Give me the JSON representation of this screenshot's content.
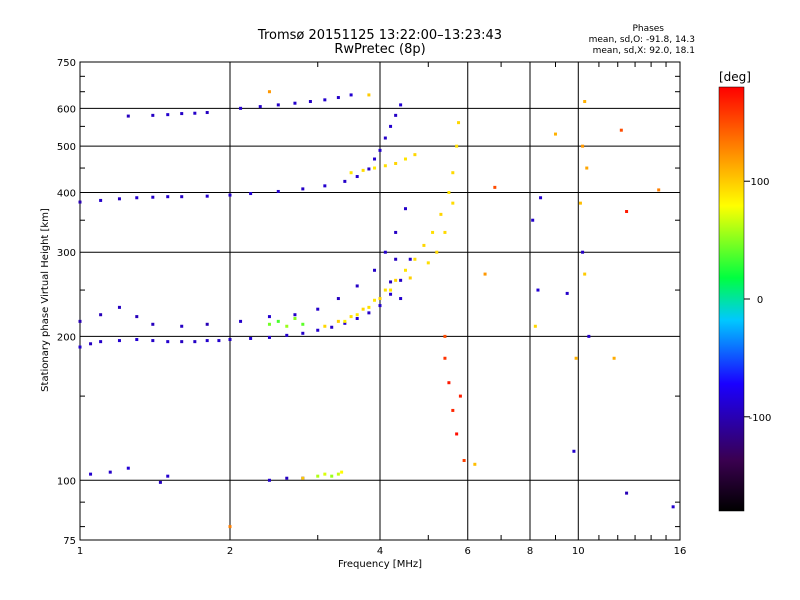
{
  "chart_data": {
    "type": "scatter",
    "title": "Tromsø 20151125 13:22:00–13:23:43",
    "subtitle": "RwPretec (8p)",
    "stats": {
      "heading": "Phases",
      "line_o": "mean, sd,O: -91.8, 14.3",
      "line_x": "mean, sd,X:  92.0, 18.1"
    },
    "xlabel": "Frequency [MHz]",
    "ylabel": "Stationary phase Virtual Height [km]",
    "xscale": "log",
    "yscale": "log",
    "xlim": [
      1,
      16
    ],
    "ylim": [
      75,
      750
    ],
    "x_ticks": [
      1,
      2,
      4,
      6,
      8,
      10,
      16
    ],
    "y_ticks": [
      75,
      100,
      200,
      300,
      400,
      500,
      600,
      750
    ],
    "grid": true,
    "colorbar": {
      "label": "[deg]",
      "range": [
        -180,
        180
      ],
      "ticks": [
        100,
        0,
        -100
      ],
      "colormap": "rainbow"
    },
    "series": [
      {
        "points": [
          [
            1.0,
            190,
            -90
          ],
          [
            1.05,
            193,
            -95
          ],
          [
            1.1,
            195,
            -92
          ],
          [
            1.2,
            196,
            -90
          ],
          [
            1.3,
            197,
            -88
          ],
          [
            1.4,
            196,
            -92
          ],
          [
            1.5,
            195,
            -90
          ],
          [
            1.6,
            195,
            -95
          ],
          [
            1.7,
            195,
            -93
          ],
          [
            1.8,
            196,
            -91
          ],
          [
            1.9,
            196,
            -90
          ],
          [
            2.0,
            197,
            -92
          ],
          [
            2.2,
            198,
            -88
          ],
          [
            2.4,
            199,
            -90
          ],
          [
            2.6,
            201,
            -91
          ],
          [
            2.8,
            203,
            -92
          ],
          [
            3.0,
            206,
            -90
          ],
          [
            3.2,
            209,
            -93
          ],
          [
            3.4,
            213,
            -90
          ],
          [
            3.6,
            218,
            -89
          ],
          [
            3.8,
            224,
            -92
          ],
          [
            4.0,
            232,
            -90
          ],
          [
            4.2,
            245,
            -91
          ],
          [
            4.4,
            262,
            -93
          ],
          [
            4.6,
            290,
            -90
          ],
          [
            1.0,
            215,
            -100
          ],
          [
            1.1,
            222,
            -98
          ],
          [
            1.2,
            230,
            -95
          ],
          [
            1.3,
            220,
            -97
          ],
          [
            1.4,
            212,
            -96
          ],
          [
            1.6,
            210,
            -94
          ],
          [
            1.8,
            212,
            -99
          ],
          [
            2.1,
            215,
            -92
          ],
          [
            2.4,
            220,
            -90
          ],
          [
            2.7,
            222,
            -93
          ],
          [
            3.0,
            228,
            -91
          ],
          [
            3.3,
            240,
            -95
          ],
          [
            3.6,
            255,
            -93
          ],
          [
            3.9,
            275,
            -92
          ],
          [
            4.1,
            300,
            -90
          ],
          [
            4.3,
            330,
            -94
          ],
          [
            4.5,
            370,
            -92
          ],
          [
            4.3,
            290,
            -95
          ],
          [
            4.2,
            260,
            -96
          ],
          [
            4.4,
            240,
            -91
          ],
          [
            1.0,
            382,
            -100
          ],
          [
            1.1,
            385,
            -92
          ],
          [
            1.2,
            388,
            -95
          ],
          [
            1.3,
            390,
            -90
          ],
          [
            1.4,
            391,
            -93
          ],
          [
            1.5,
            392,
            -91
          ],
          [
            1.6,
            392,
            -94
          ],
          [
            1.8,
            393,
            -90
          ],
          [
            2.0,
            395,
            -92
          ],
          [
            2.2,
            398,
            -88
          ],
          [
            2.5,
            402,
            -91
          ],
          [
            2.8,
            407,
            -93
          ],
          [
            3.1,
            413,
            -90
          ],
          [
            3.4,
            422,
            -92
          ],
          [
            3.6,
            432,
            -89
          ],
          [
            3.8,
            448,
            -93
          ],
          [
            3.9,
            470,
            -90
          ],
          [
            4.0,
            490,
            -91
          ],
          [
            4.1,
            520,
            -92
          ],
          [
            4.2,
            550,
            -90
          ],
          [
            4.3,
            580,
            -93
          ],
          [
            4.4,
            610,
            -88
          ],
          [
            1.25,
            578,
            -96
          ],
          [
            1.4,
            580,
            -94
          ],
          [
            1.5,
            582,
            -90
          ],
          [
            1.6,
            585,
            -93
          ],
          [
            1.7,
            586,
            -92
          ],
          [
            1.8,
            588,
            -95
          ],
          [
            2.1,
            600,
            -90
          ],
          [
            2.3,
            605,
            -92
          ],
          [
            2.5,
            610,
            -94
          ],
          [
            2.7,
            615,
            -91
          ],
          [
            2.9,
            620,
            -93
          ],
          [
            3.1,
            625,
            -90
          ],
          [
            3.3,
            632,
            -92
          ],
          [
            3.5,
            640,
            -89
          ],
          [
            1.05,
            103,
            -90
          ],
          [
            1.15,
            104,
            -92
          ],
          [
            1.25,
            106,
            -88
          ],
          [
            1.45,
            99,
            -95
          ],
          [
            1.5,
            102,
            -90
          ],
          [
            2.4,
            100,
            -90
          ],
          [
            2.6,
            101,
            -95
          ],
          [
            2.8,
            101,
            -92
          ],
          [
            9.8,
            115,
            -91
          ],
          [
            12.5,
            94,
            -99
          ],
          [
            15.5,
            88,
            -90
          ],
          [
            9.5,
            246,
            -92
          ],
          [
            8.1,
            350,
            -90
          ],
          [
            8.3,
            250,
            -88
          ],
          [
            10.2,
            300,
            -94
          ],
          [
            10.5,
            200,
            -92
          ],
          [
            8.4,
            390,
            -90
          ]
        ]
      },
      {
        "points": [
          [
            3.1,
            210,
            95
          ],
          [
            3.3,
            215,
            98
          ],
          [
            3.5,
            220,
            92
          ],
          [
            3.7,
            228,
            95
          ],
          [
            3.9,
            238,
            90
          ],
          [
            4.1,
            250,
            92
          ],
          [
            4.3,
            262,
            97
          ],
          [
            4.5,
            275,
            90
          ],
          [
            4.7,
            290,
            93
          ],
          [
            4.9,
            310,
            95
          ],
          [
            5.1,
            330,
            92
          ],
          [
            5.3,
            360,
            96
          ],
          [
            5.5,
            400,
            90
          ],
          [
            5.6,
            440,
            94
          ],
          [
            5.7,
            500,
            92
          ],
          [
            5.75,
            560,
            95
          ],
          [
            3.4,
            215,
            85
          ],
          [
            3.6,
            222,
            88
          ],
          [
            3.8,
            230,
            92
          ],
          [
            4.0,
            240,
            95
          ],
          [
            4.2,
            250,
            90
          ],
          [
            4.6,
            265,
            98
          ],
          [
            5.0,
            285,
            92
          ],
          [
            5.2,
            300,
            95
          ],
          [
            5.4,
            330,
            94
          ],
          [
            5.6,
            380,
            93
          ],
          [
            3.5,
            440,
            90
          ],
          [
            3.7,
            445,
            93
          ],
          [
            3.9,
            450,
            88
          ],
          [
            4.1,
            455,
            92
          ],
          [
            4.3,
            460,
            96
          ],
          [
            4.5,
            470,
            90
          ],
          [
            4.7,
            480,
            95
          ],
          [
            5.4,
            200,
            150
          ],
          [
            5.4,
            180,
            160
          ],
          [
            5.5,
            160,
            170
          ],
          [
            5.6,
            140,
            165
          ],
          [
            5.7,
            125,
            175
          ],
          [
            5.9,
            110,
            155
          ],
          [
            5.8,
            150,
            168
          ],
          [
            3.0,
            102,
            60
          ],
          [
            3.1,
            103,
            70
          ],
          [
            3.2,
            102,
            55
          ],
          [
            3.3,
            103,
            65
          ],
          [
            2.8,
            101,
            100
          ],
          [
            3.35,
            104,
            80
          ],
          [
            2.4,
            212,
            45
          ],
          [
            2.5,
            215,
            35
          ],
          [
            2.6,
            210,
            55
          ],
          [
            2.7,
            218,
            50
          ],
          [
            2.8,
            212,
            40
          ],
          [
            10.3,
            620,
            110
          ],
          [
            10.2,
            500,
            120
          ],
          [
            10.4,
            450,
            115
          ],
          [
            10.1,
            380,
            105
          ],
          [
            10.3,
            270,
            100
          ],
          [
            11.8,
            180,
            112
          ],
          [
            12.2,
            540,
            150
          ],
          [
            12.5,
            365,
            170
          ],
          [
            9.9,
            180,
            110
          ],
          [
            8.2,
            210,
            95
          ],
          [
            6.8,
            410,
            150
          ],
          [
            6.5,
            270,
            120
          ],
          [
            6.2,
            108,
            105
          ],
          [
            14.5,
            405,
            130
          ],
          [
            9.0,
            530,
            110
          ],
          [
            2.0,
            80,
            130
          ],
          [
            2.4,
            650,
            120
          ],
          [
            3.8,
            640,
            100
          ]
        ]
      }
    ]
  }
}
